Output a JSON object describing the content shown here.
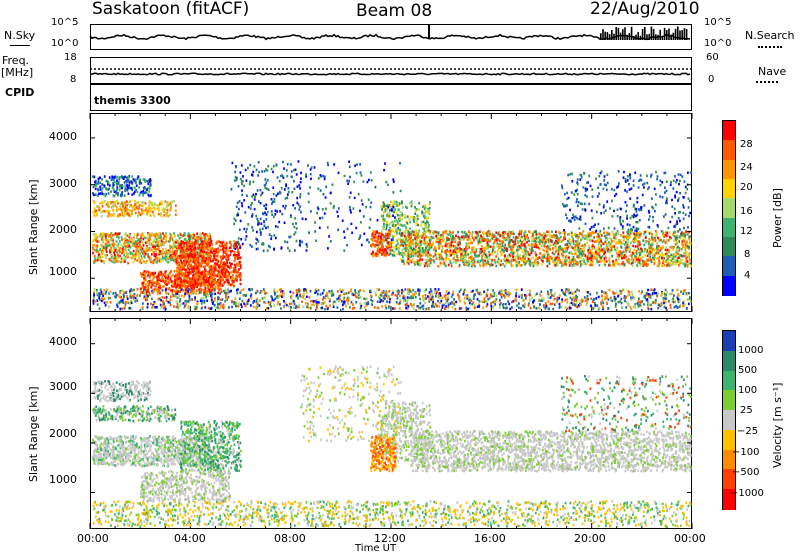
{
  "header": {
    "station": "Saskatoon (fitACF)",
    "beam": "Beam 08",
    "date": "22/Aug/2010"
  },
  "top_panel": {
    "left_label": "N.Sky",
    "left_ticks": [
      "10^5",
      "10^0"
    ],
    "right_ticks": [
      "10^5",
      "10^0"
    ],
    "right_label": "N.Search"
  },
  "freq_panel": {
    "left_label": "Freq.",
    "left_unit": "[MHz]",
    "left_ticks": [
      "18",
      "8"
    ],
    "right_ticks": [
      "60",
      "0"
    ],
    "right_label": "Nave"
  },
  "cpid_panel": {
    "label": "CPID",
    "value": "themis 3300"
  },
  "chart_data": [
    {
      "type": "heatmap",
      "name": "power",
      "ylabel": "Slant Range [km]",
      "ylim": [
        200,
        4600
      ],
      "yticks": [
        "4000",
        "3000",
        "2000",
        "1000"
      ],
      "xlabel": "Time UT",
      "xticks": [
        "00:00",
        "04:00",
        "08:00",
        "12:00",
        "16:00",
        "20:00",
        "00:00"
      ],
      "colorbar": {
        "label": "Power [dB]",
        "ticks": [
          "28",
          "24",
          "20",
          "16",
          "12",
          "8",
          "4"
        ],
        "colors": [
          "#ff0000",
          "#ff5a00",
          "#ff9600",
          "#ffd200",
          "#a6d96a",
          "#3cb371",
          "#2e8b57",
          "#1a5fb4",
          "#0000ff"
        ]
      }
    },
    {
      "type": "heatmap",
      "name": "velocity",
      "ylabel": "Slant Range [km]",
      "ylim": [
        200,
        4600
      ],
      "yticks": [
        "4000",
        "3000",
        "2000",
        "1000"
      ],
      "xlabel": "Time UT",
      "xticks": [
        "00:00",
        "04:00",
        "08:00",
        "12:00",
        "16:00",
        "20:00",
        "00:00"
      ],
      "colorbar": {
        "label": "Velocity [m s⁻¹]",
        "ticks": [
          "1000",
          "500",
          "100",
          "25",
          "−25",
          "−100",
          "−500",
          "−1000"
        ],
        "colors": [
          "#1a3fb4",
          "#2a8a6a",
          "#3cb371",
          "#7ccd32",
          "#c8c8c8",
          "#ffc000",
          "#ff8c00",
          "#ff4000",
          "#ff0000"
        ]
      }
    }
  ],
  "x_axis": {
    "ticks": [
      "00:00",
      "04:00",
      "08:00",
      "12:00",
      "16:00",
      "20:00",
      "00:00"
    ],
    "label": "Time UT"
  }
}
